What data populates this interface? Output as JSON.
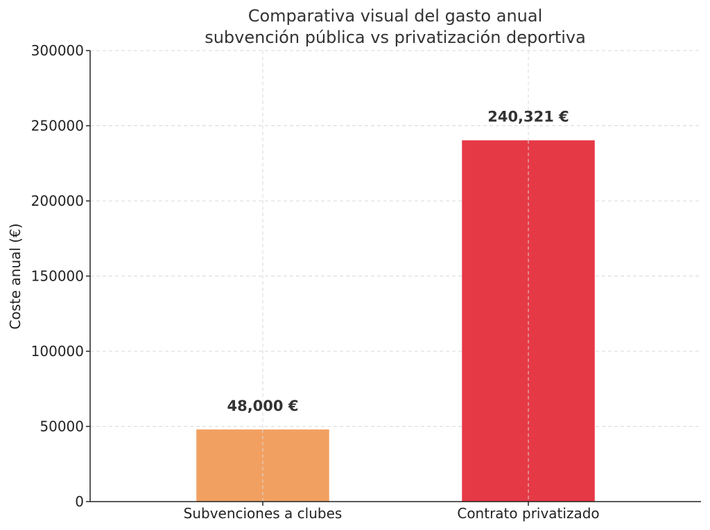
{
  "chart_data": {
    "type": "bar",
    "title": [
      "Comparativa visual del gasto anual",
      "subvención pública vs privatización deportiva"
    ],
    "xlabel": "",
    "ylabel": "Coste anual (€)",
    "ylim": [
      0,
      300000
    ],
    "yticks": [
      0,
      50000,
      100000,
      150000,
      200000,
      250000,
      300000
    ],
    "yticklabels": [
      "0",
      "50000",
      "100000",
      "150000",
      "200000",
      "250000",
      "300000"
    ],
    "categories": [
      "Subvenciones a clubes",
      "Contrato privatizado"
    ],
    "values": [
      48000,
      240321
    ],
    "value_labels": [
      "48,000 €",
      "240,321 €"
    ],
    "colors": [
      "#f2a061",
      "#e63946"
    ],
    "grid": true
  }
}
